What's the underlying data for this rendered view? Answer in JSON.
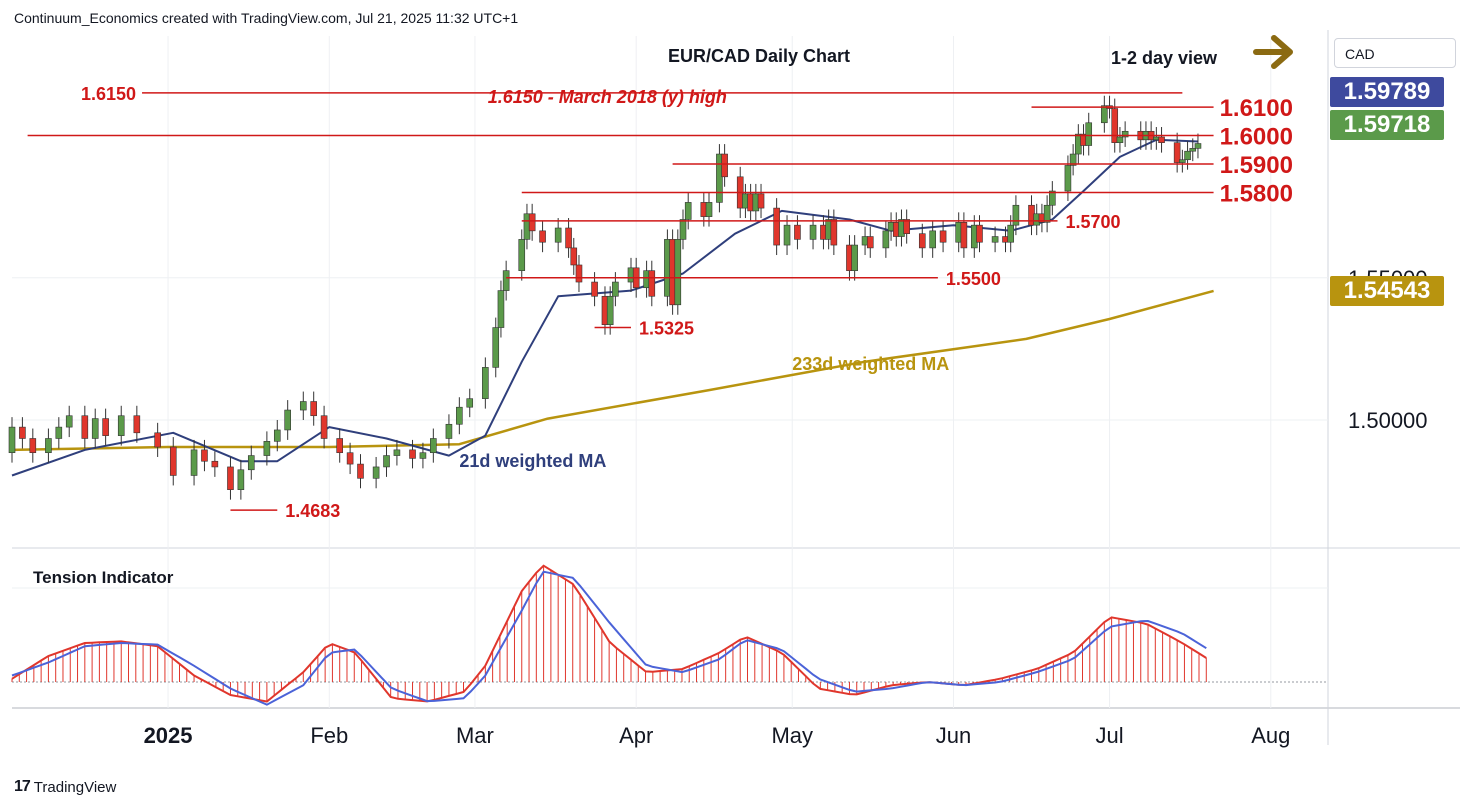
{
  "header": {
    "attribution": "Continuum_Economics created with TradingView.com, Jul 21, 2025 11:32 UTC+1"
  },
  "footer": {
    "brand": "TradingView",
    "brand_mark": "17"
  },
  "currency_selector": {
    "label": "CAD"
  },
  "view": {
    "label": "1-2 day view",
    "icon": "right-arrow-icon",
    "icon_color": "#8b6a12"
  },
  "price_badges": [
    {
      "value": "1.59789",
      "color": "#3e4a9e"
    },
    {
      "value": "1.59718",
      "color": "#5b9a4a"
    },
    {
      "value": "1.54543",
      "color": "#b8940f"
    }
  ],
  "colors": {
    "up_candle": "#5b9a4a",
    "down_candle": "#e0362c",
    "resistance_line": "#d01818",
    "ma21": "#2f3f7c",
    "ma233": "#b8940f",
    "tension": "#e0362c",
    "tension_signal": "#4b63d8"
  },
  "chart_data": [
    {
      "type": "candlestick",
      "title": "EUR/CAD Daily Chart",
      "y_axis_ticks": [
        "1.55000",
        "1.50000"
      ],
      "ylim": [
        1.455,
        1.635
      ],
      "x_axis_labels": [
        "2025",
        "Feb",
        "Mar",
        "Apr",
        "May",
        "Jun",
        "Jul",
        "Aug"
      ],
      "x_axis_dates": [
        "2025-01-01",
        "2025-02-01",
        "2025-03-01",
        "2025-04-01",
        "2025-05-01",
        "2025-06-01",
        "2025-07-01",
        "2025-08-01"
      ],
      "xlim": [
        "2024-12-02",
        "2025-08-12"
      ],
      "levels": [
        {
          "value": 1.615,
          "label": "1.6150",
          "from": "2024-12-27",
          "to": "2025-07-15"
        },
        {
          "value": 1.61,
          "label": "1.6100",
          "from": "2025-06-16",
          "to": "2025-07-21"
        },
        {
          "value": 1.6,
          "label": "1.6000",
          "from": "2024-12-05",
          "to": "2025-07-21"
        },
        {
          "value": 1.59,
          "label": "1.5900",
          "from": "2025-04-08",
          "to": "2025-07-21"
        },
        {
          "value": 1.58,
          "label": "1.5800",
          "from": "2025-03-10",
          "to": "2025-07-21"
        },
        {
          "value": 1.57,
          "label": "1.5700",
          "from": "2025-03-10",
          "to": "2025-06-21"
        },
        {
          "value": 1.55,
          "label": "1.5500",
          "from": "2025-03-07",
          "to": "2025-05-29"
        },
        {
          "value": 1.5325,
          "label": "1.5325",
          "from": "2025-03-24",
          "to": "2025-03-31"
        },
        {
          "value": 1.4683,
          "label": "1.4683",
          "from": "2025-01-13",
          "to": "2025-01-22"
        }
      ],
      "annotations": [
        {
          "text": "1.6150 - March 2018 (y) high",
          "date": "2025-02-28",
          "price": 1.6125
        }
      ],
      "ma_labels": [
        {
          "text": "21d weighted MA",
          "date": "2025-02-26",
          "price": 1.4835
        },
        {
          "text": "233d weighted MA",
          "date": "2025-05-01",
          "price": 1.5175
        }
      ],
      "candles": [
        [
          "2024-12-02",
          1.4885,
          1.4975
        ],
        [
          "2024-12-04",
          1.4975,
          1.4935
        ],
        [
          "2024-12-06",
          1.4935,
          1.4885
        ],
        [
          "2024-12-09",
          1.4885,
          1.4935
        ],
        [
          "2024-12-11",
          1.4935,
          1.4975
        ],
        [
          "2024-12-13",
          1.4975,
          1.5015
        ],
        [
          "2024-12-16",
          1.5015,
          1.4935
        ],
        [
          "2024-12-18",
          1.4935,
          1.5005
        ],
        [
          "2024-12-20",
          1.5005,
          1.4945
        ],
        [
          "2024-12-23",
          1.4945,
          1.5015
        ],
        [
          "2024-12-26",
          1.5015,
          1.4955
        ],
        [
          "2024-12-30",
          1.4955,
          1.4905
        ],
        [
          "2025-01-02",
          1.4905,
          1.4805
        ],
        [
          "2025-01-06",
          1.4805,
          1.4895
        ],
        [
          "2025-01-08",
          1.4895,
          1.4855
        ],
        [
          "2025-01-10",
          1.4855,
          1.4835
        ],
        [
          "2025-01-13",
          1.4835,
          1.4755
        ],
        [
          "2025-01-15",
          1.4755,
          1.4825
        ],
        [
          "2025-01-17",
          1.4825,
          1.4875
        ],
        [
          "2025-01-20",
          1.4875,
          1.4925
        ],
        [
          "2025-01-22",
          1.4925,
          1.4965
        ],
        [
          "2025-01-24",
          1.4965,
          1.5035
        ],
        [
          "2025-01-27",
          1.5035,
          1.5065
        ],
        [
          "2025-01-29",
          1.5065,
          1.5015
        ],
        [
          "2025-01-31",
          1.5015,
          1.4935
        ],
        [
          "2025-02-03",
          1.4935,
          1.4885
        ],
        [
          "2025-02-05",
          1.4885,
          1.4845
        ],
        [
          "2025-02-07",
          1.4845,
          1.4795
        ],
        [
          "2025-02-10",
          1.4795,
          1.4835
        ],
        [
          "2025-02-12",
          1.4835,
          1.4875
        ],
        [
          "2025-02-14",
          1.4875,
          1.4895
        ],
        [
          "2025-02-17",
          1.4895,
          1.4865
        ],
        [
          "2025-02-19",
          1.4865,
          1.4885
        ],
        [
          "2025-02-21",
          1.4885,
          1.4935
        ],
        [
          "2025-02-24",
          1.4935,
          1.4985
        ],
        [
          "2025-02-26",
          1.4985,
          1.5045
        ],
        [
          "2025-02-28",
          1.5045,
          1.5075
        ],
        [
          "2025-03-03",
          1.5075,
          1.5185
        ],
        [
          "2025-03-05",
          1.5185,
          1.5325
        ],
        [
          "2025-03-06",
          1.5325,
          1.5455
        ],
        [
          "2025-03-07",
          1.5455,
          1.5525
        ],
        [
          "2025-03-10",
          1.5525,
          1.5635
        ],
        [
          "2025-03-11",
          1.5635,
          1.5725
        ],
        [
          "2025-03-12",
          1.5725,
          1.5665
        ],
        [
          "2025-03-14",
          1.5665,
          1.5625
        ],
        [
          "2025-03-17",
          1.5625,
          1.5675
        ],
        [
          "2025-03-19",
          1.5675,
          1.5605
        ],
        [
          "2025-03-20",
          1.5605,
          1.5545
        ],
        [
          "2025-03-21",
          1.5545,
          1.5485
        ],
        [
          "2025-03-24",
          1.5485,
          1.5435
        ],
        [
          "2025-03-26",
          1.5435,
          1.5335
        ],
        [
          "2025-03-27",
          1.5335,
          1.5435
        ],
        [
          "2025-03-28",
          1.5435,
          1.5485
        ],
        [
          "2025-03-31",
          1.5485,
          1.5535
        ],
        [
          "2025-04-01",
          1.5535,
          1.5465
        ],
        [
          "2025-04-03",
          1.5465,
          1.5525
        ],
        [
          "2025-04-04",
          1.5525,
          1.5435
        ],
        [
          "2025-04-07",
          1.5435,
          1.5635
        ],
        [
          "2025-04-08",
          1.5635,
          1.5405
        ],
        [
          "2025-04-09",
          1.5405,
          1.5635
        ],
        [
          "2025-04-10",
          1.5635,
          1.5705
        ],
        [
          "2025-04-11",
          1.5705,
          1.5765
        ],
        [
          "2025-04-14",
          1.5765,
          1.5715
        ],
        [
          "2025-04-15",
          1.5715,
          1.5765
        ],
        [
          "2025-04-17",
          1.5765,
          1.5935
        ],
        [
          "2025-04-18",
          1.5935,
          1.5855
        ],
        [
          "2025-04-21",
          1.5855,
          1.5745
        ],
        [
          "2025-04-22",
          1.5745,
          1.5795
        ],
        [
          "2025-04-23",
          1.5795,
          1.5735
        ],
        [
          "2025-04-24",
          1.5735,
          1.5795
        ],
        [
          "2025-04-25",
          1.5795,
          1.5745
        ],
        [
          "2025-04-28",
          1.5745,
          1.5615
        ],
        [
          "2025-04-30",
          1.5615,
          1.5685
        ],
        [
          "2025-05-02",
          1.5685,
          1.5635
        ],
        [
          "2025-05-05",
          1.5635,
          1.5685
        ],
        [
          "2025-05-07",
          1.5685,
          1.5635
        ],
        [
          "2025-05-08",
          1.5635,
          1.5705
        ],
        [
          "2025-05-09",
          1.5705,
          1.5615
        ],
        [
          "2025-05-12",
          1.5615,
          1.5525
        ],
        [
          "2025-05-13",
          1.5525,
          1.5615
        ],
        [
          "2025-05-15",
          1.5615,
          1.5645
        ],
        [
          "2025-05-16",
          1.5645,
          1.5605
        ],
        [
          "2025-05-19",
          1.5605,
          1.5665
        ],
        [
          "2025-05-20",
          1.5665,
          1.5695
        ],
        [
          "2025-05-21",
          1.5695,
          1.5645
        ],
        [
          "2025-05-22",
          1.5645,
          1.5705
        ],
        [
          "2025-05-23",
          1.5705,
          1.5655
        ],
        [
          "2025-05-26",
          1.5655,
          1.5605
        ],
        [
          "2025-05-28",
          1.5605,
          1.5665
        ],
        [
          "2025-05-30",
          1.5665,
          1.5625
        ],
        [
          "2025-06-02",
          1.5625,
          1.5695
        ],
        [
          "2025-06-03",
          1.5695,
          1.5605
        ],
        [
          "2025-06-05",
          1.5605,
          1.5685
        ],
        [
          "2025-06-06",
          1.5685,
          1.5625
        ],
        [
          "2025-06-09",
          1.5625,
          1.5645
        ],
        [
          "2025-06-11",
          1.5645,
          1.5625
        ],
        [
          "2025-06-12",
          1.5625,
          1.5685
        ],
        [
          "2025-06-13",
          1.5685,
          1.5755
        ],
        [
          "2025-06-16",
          1.5755,
          1.5685
        ],
        [
          "2025-06-17",
          1.5685,
          1.5725
        ],
        [
          "2025-06-18",
          1.5725,
          1.5695
        ],
        [
          "2025-06-19",
          1.5695,
          1.5755
        ],
        [
          "2025-06-20",
          1.5755,
          1.5805
        ],
        [
          "2025-06-23",
          1.5805,
          1.5895
        ],
        [
          "2025-06-24",
          1.5895,
          1.5935
        ],
        [
          "2025-06-25",
          1.5935,
          1.6005
        ],
        [
          "2025-06-26",
          1.6005,
          1.5965
        ],
        [
          "2025-06-27",
          1.5965,
          1.6045
        ],
        [
          "2025-06-30",
          1.6045,
          1.6105
        ],
        [
          "2025-07-01",
          1.6105,
          1.6095
        ],
        [
          "2025-07-02",
          1.6095,
          1.5975
        ],
        [
          "2025-07-03",
          1.5975,
          1.5995
        ],
        [
          "2025-07-04",
          1.5995,
          1.6015
        ],
        [
          "2025-07-07",
          1.6015,
          1.5985
        ],
        [
          "2025-07-08",
          1.5985,
          1.6015
        ],
        [
          "2025-07-09",
          1.6015,
          1.5985
        ],
        [
          "2025-07-10",
          1.5985,
          1.5995
        ],
        [
          "2025-07-11",
          1.5995,
          1.5975
        ],
        [
          "2025-07-14",
          1.5975,
          1.5905
        ],
        [
          "2025-07-15",
          1.5905,
          1.5915
        ],
        [
          "2025-07-16",
          1.5915,
          1.5945
        ],
        [
          "2025-07-17",
          1.5945,
          1.5955
        ],
        [
          "2025-07-18",
          1.5955,
          1.5972
        ]
      ],
      "ma21": [
        [
          "2024-12-02",
          1.4805
        ],
        [
          "2024-12-16",
          1.4895
        ],
        [
          "2025-01-02",
          1.4955
        ],
        [
          "2025-01-15",
          1.4855
        ],
        [
          "2025-01-22",
          1.4855
        ],
        [
          "2025-02-01",
          1.4975
        ],
        [
          "2025-02-12",
          1.4935
        ],
        [
          "2025-02-24",
          1.4875
        ],
        [
          "2025-03-03",
          1.4945
        ],
        [
          "2025-03-10",
          1.5205
        ],
        [
          "2025-03-17",
          1.5435
        ],
        [
          "2025-03-31",
          1.5455
        ],
        [
          "2025-04-10",
          1.5515
        ],
        [
          "2025-04-20",
          1.5655
        ],
        [
          "2025-04-29",
          1.5735
        ],
        [
          "2025-05-12",
          1.5705
        ],
        [
          "2025-05-20",
          1.5665
        ],
        [
          "2025-06-01",
          1.5685
        ],
        [
          "2025-06-12",
          1.5665
        ],
        [
          "2025-06-20",
          1.5705
        ],
        [
          "2025-06-26",
          1.5805
        ],
        [
          "2025-07-03",
          1.5925
        ],
        [
          "2025-07-10",
          1.5985
        ],
        [
          "2025-07-18",
          1.5979
        ]
      ],
      "ma233": [
        [
          "2024-12-02",
          1.4895
        ],
        [
          "2025-01-01",
          1.4905
        ],
        [
          "2025-02-01",
          1.4905
        ],
        [
          "2025-02-26",
          1.4915
        ],
        [
          "2025-03-15",
          1.5005
        ],
        [
          "2025-04-15",
          1.5105
        ],
        [
          "2025-05-15",
          1.5205
        ],
        [
          "2025-06-15",
          1.5285
        ],
        [
          "2025-07-01",
          1.5355
        ],
        [
          "2025-07-21",
          1.5454
        ]
      ]
    },
    {
      "type": "bar",
      "title": "Tension Indicator",
      "ylim": [
        -0.8,
        4.0
      ],
      "xlim": [
        "2024-12-02",
        "2025-08-12"
      ],
      "x": [
        "2024-12-02",
        "2024-12-09",
        "2024-12-16",
        "2024-12-23",
        "2024-12-30",
        "2025-01-06",
        "2025-01-13",
        "2025-01-20",
        "2025-01-27",
        "2025-02-01",
        "2025-02-06",
        "2025-02-13",
        "2025-02-20",
        "2025-02-27",
        "2025-03-03",
        "2025-03-10",
        "2025-03-14",
        "2025-03-20",
        "2025-03-27",
        "2025-04-03",
        "2025-04-10",
        "2025-04-17",
        "2025-04-22",
        "2025-04-29",
        "2025-05-06",
        "2025-05-13",
        "2025-05-20",
        "2025-05-27",
        "2025-06-03",
        "2025-06-10",
        "2025-06-17",
        "2025-06-24",
        "2025-07-01",
        "2025-07-08",
        "2025-07-15",
        "2025-07-21"
      ],
      "values": [
        0.1,
        0.8,
        1.2,
        1.25,
        1.1,
        0.2,
        -0.4,
        -0.6,
        0.3,
        1.2,
        0.9,
        -0.5,
        -0.6,
        -0.3,
        0.5,
        2.8,
        3.6,
        3.0,
        1.2,
        0.3,
        0.4,
        0.9,
        1.4,
        0.9,
        -0.2,
        -0.4,
        -0.1,
        0.0,
        -0.1,
        0.1,
        0.4,
        0.9,
        2.0,
        1.8,
        1.2,
        0.6
      ],
      "signal": [
        0.2,
        0.6,
        1.1,
        1.2,
        1.15,
        0.5,
        -0.2,
        -0.7,
        -0.1,
        0.9,
        1.0,
        -0.2,
        -0.6,
        -0.5,
        0.2,
        2.2,
        3.4,
        3.2,
        1.8,
        0.5,
        0.3,
        0.7,
        1.3,
        1.0,
        0.1,
        -0.3,
        -0.2,
        0.0,
        -0.1,
        0.0,
        0.3,
        0.7,
        1.7,
        1.9,
        1.5,
        0.9
      ]
    }
  ]
}
